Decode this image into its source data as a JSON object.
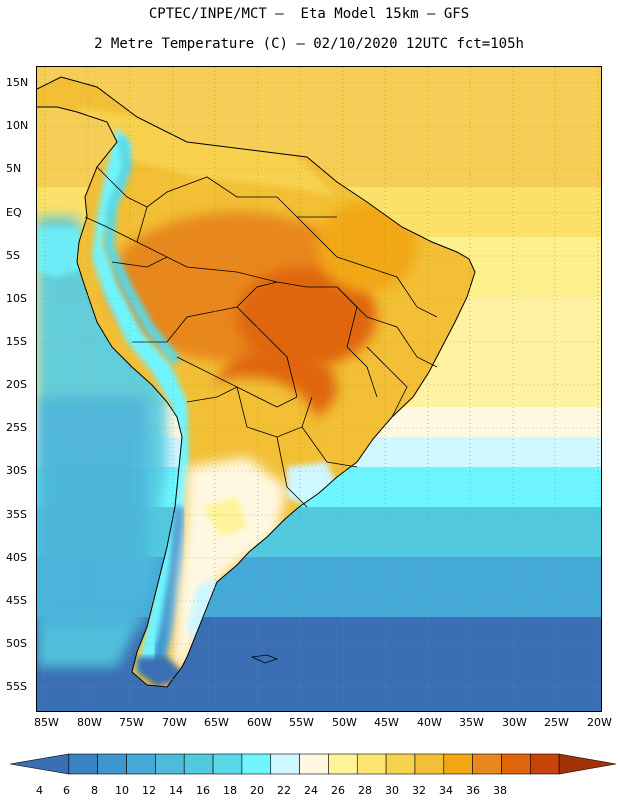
{
  "title": {
    "line1": "CPTEC/INPE/MCT —  Eta Model 15km — GFS",
    "line2": "2 Metre Temperature (C) — 02/10/2020 12UTC fct=105h"
  },
  "axes": {
    "lat_labels": [
      "15N",
      "10N",
      "5N",
      "EQ",
      "5S",
      "10S",
      "15S",
      "20S",
      "25S",
      "30S",
      "35S",
      "40S",
      "45S",
      "50S",
      "55S"
    ],
    "lon_labels": [
      "85W",
      "80W",
      "75W",
      "70W",
      "65W",
      "60W",
      "55W",
      "50W",
      "45W",
      "40W",
      "35W",
      "30W",
      "25W",
      "20W"
    ]
  },
  "colorbar": {
    "labels": [
      "4",
      "6",
      "8",
      "10",
      "12",
      "14",
      "16",
      "18",
      "20",
      "22",
      "24",
      "26",
      "28",
      "30",
      "32",
      "34",
      "36",
      "38"
    ],
    "colors": [
      "#3a6fb4",
      "#3a82c2",
      "#3e96cf",
      "#46aad8",
      "#4dbbd9",
      "#52c9df",
      "#5ad8e7",
      "#6ff5ff",
      "#cff7ff",
      "#fff8e1",
      "#fff39a",
      "#fde570",
      "#f8d24f",
      "#f2bf36",
      "#f2a712",
      "#e8871e",
      "#e0660c",
      "#c64309",
      "#a23208"
    ]
  }
}
